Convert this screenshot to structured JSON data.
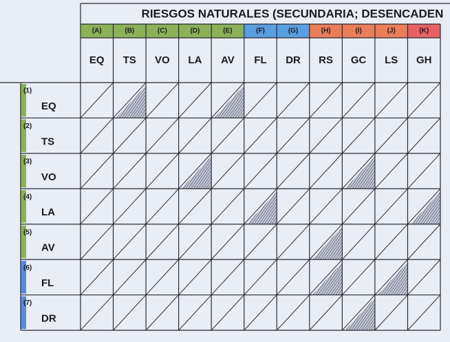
{
  "header": {
    "title": "RIESGOS NATURALES (SECUNDARIA; DESENCADEN"
  },
  "columns": [
    {
      "letter": "(A)",
      "code": "EQ"
    },
    {
      "letter": "(B)",
      "code": "TS"
    },
    {
      "letter": "(C)",
      "code": "VO"
    },
    {
      "letter": "(D)",
      "code": "LA"
    },
    {
      "letter": "(E)",
      "code": "AV"
    },
    {
      "letter": "(F)",
      "code": "FL"
    },
    {
      "letter": "(G)",
      "code": "DR"
    },
    {
      "letter": "(H)",
      "code": "RS"
    },
    {
      "letter": "(I)",
      "code": "GC"
    },
    {
      "letter": "(J)",
      "code": "LS"
    },
    {
      "letter": "(K)",
      "code": "GH"
    }
  ],
  "rows": [
    {
      "number": "(1)",
      "code": "EQ"
    },
    {
      "number": "(2)",
      "code": "TS"
    },
    {
      "number": "(3)",
      "code": "VO"
    },
    {
      "number": "(4)",
      "code": "LA"
    },
    {
      "number": "(5)",
      "code": "AV"
    },
    {
      "number": "(6)",
      "code": "FL"
    },
    {
      "number": "(7)",
      "code": "DR"
    }
  ]
}
